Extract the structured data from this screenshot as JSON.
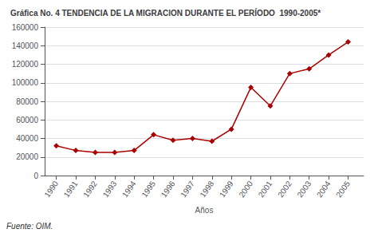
{
  "chart_data": {
    "type": "line",
    "title": "Gráfica No. 4 TENDENCIA DE LA MIGRACION DURANTE EL PERÍODO  1990-2005*",
    "xlabel": "Años",
    "x": [
      1990,
      1991,
      1992,
      1993,
      1994,
      1995,
      1996,
      1997,
      1998,
      1999,
      2000,
      2001,
      2002,
      2003,
      2004,
      2005
    ],
    "values": [
      32000,
      27000,
      25000,
      25000,
      27000,
      44000,
      38000,
      40000,
      37000,
      50000,
      95000,
      75000,
      110000,
      115000,
      130000,
      144000
    ],
    "color": "#aa0000",
    "marker": "diamond",
    "xlim": [
      1989.4,
      2005.8
    ],
    "xticks": [
      1990,
      1991,
      1992,
      1993,
      1994,
      1995,
      1996,
      1997,
      1998,
      1999,
      2000,
      2001,
      2002,
      2003,
      2004,
      2005
    ],
    "ylim": [
      0,
      160000
    ],
    "yticks": [
      0,
      20000,
      40000,
      60000,
      80000,
      100000,
      120000,
      140000,
      160000
    ],
    "grid": true,
    "annotations": [
      "Fuente: OIM."
    ]
  }
}
